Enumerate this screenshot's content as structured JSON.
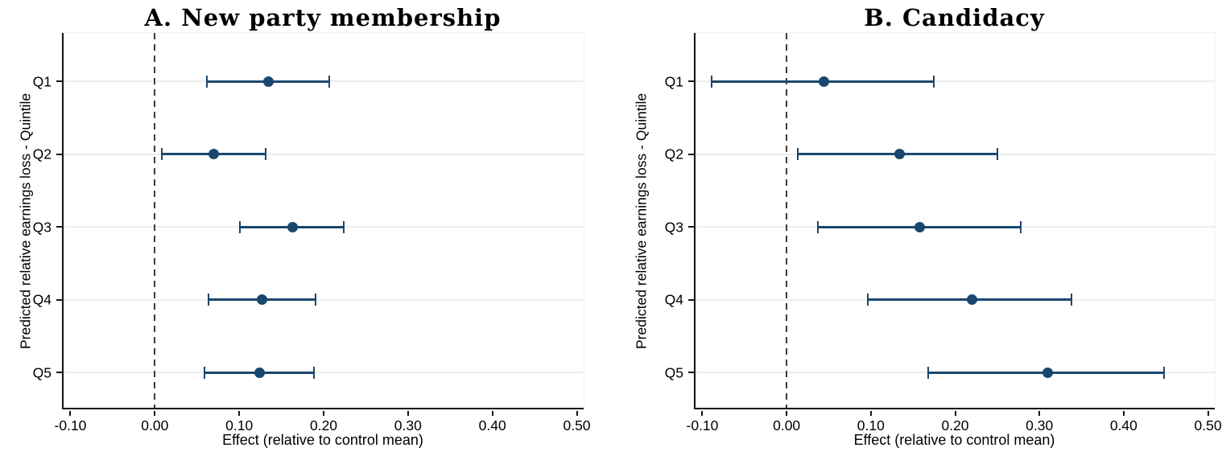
{
  "figure": {
    "background": "#ffffff",
    "marker_color": "#1a476f",
    "grid_color": "#ededed",
    "axis_color": "#141414",
    "zero_line_color": "#3d3d3d",
    "text_color": "#000000"
  },
  "chart_data": [
    {
      "type": "scatter",
      "subtype": "horizontal-error-bar",
      "panel": "A",
      "title": "A. New party membership",
      "xlabel": "Effect (relative to control mean)",
      "ylabel": "Predicted relative earnings loss - Quintile",
      "categories": [
        "Q1",
        "Q2",
        "Q3",
        "Q4",
        "Q5"
      ],
      "estimates": [
        0.135,
        0.07,
        0.163,
        0.127,
        0.124
      ],
      "ci_low": [
        0.062,
        0.008,
        0.101,
        0.064,
        0.059
      ],
      "ci_high": [
        0.207,
        0.131,
        0.224,
        0.19,
        0.189
      ],
      "xticks": [
        -0.1,
        0.0,
        0.1,
        0.2,
        0.3,
        0.4,
        0.5
      ],
      "xlim": [
        -0.11,
        0.51
      ],
      "zero_line": 0.0,
      "grid": true,
      "legend": "none"
    },
    {
      "type": "scatter",
      "subtype": "horizontal-error-bar",
      "panel": "B",
      "title": "B. Candidacy",
      "xlabel": "Effect (relative to control mean)",
      "ylabel": "Predicted relative earnings loss - Quintile",
      "categories": [
        "Q1",
        "Q2",
        "Q3",
        "Q4",
        "Q5"
      ],
      "estimates": [
        0.044,
        0.134,
        0.158,
        0.22,
        0.31
      ],
      "ci_low": [
        -0.089,
        0.013,
        0.037,
        0.096,
        0.168
      ],
      "ci_high": [
        0.175,
        0.25,
        0.278,
        0.338,
        0.448
      ],
      "xticks": [
        -0.1,
        0.0,
        0.1,
        0.2,
        0.3,
        0.4,
        0.5
      ],
      "xlim": [
        -0.11,
        0.51
      ],
      "zero_line": 0.0,
      "grid": true,
      "legend": "none"
    }
  ]
}
